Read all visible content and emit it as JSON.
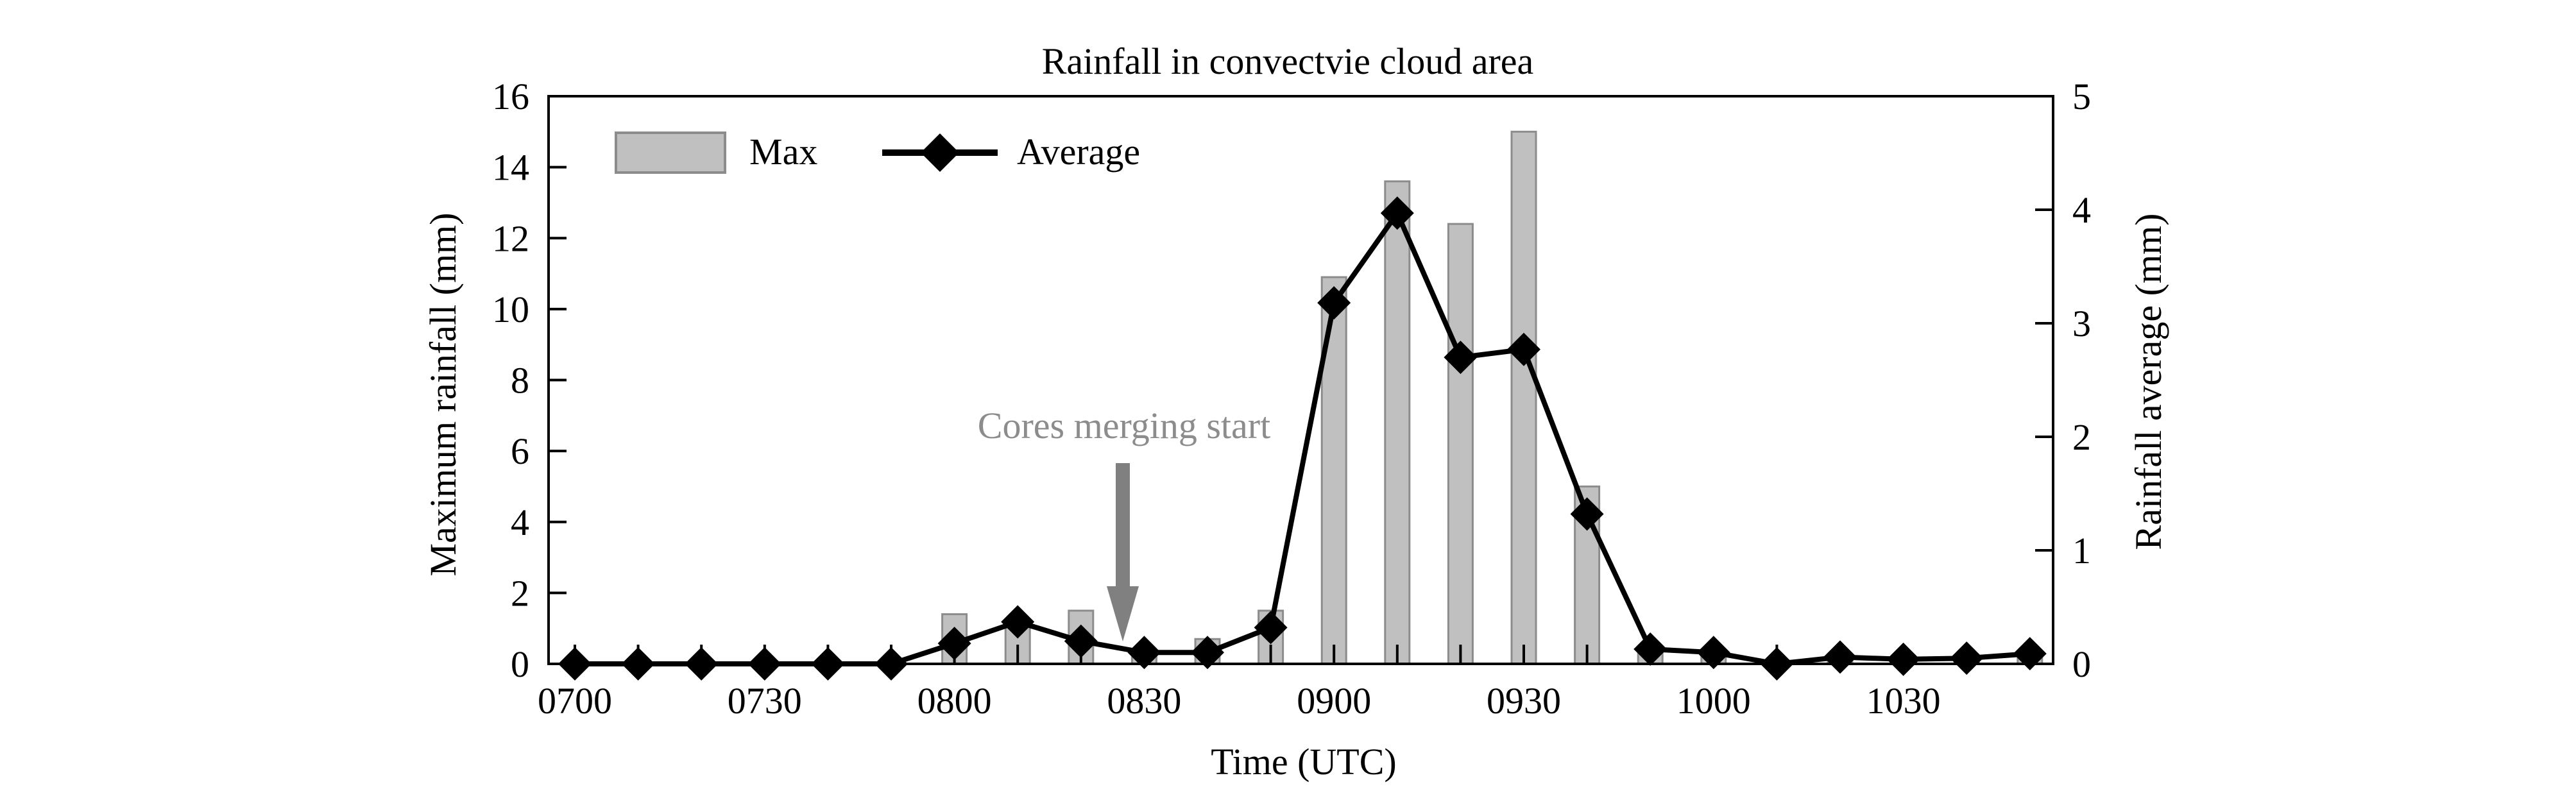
{
  "chart_data": {
    "type": "bar+line",
    "title": "Rainfall in convectvie cloud area",
    "xlabel": "Time (UTC)",
    "ylabel_left": "Maximum rainfall (mm)",
    "ylabel_right": "Rainfall average (mm)",
    "x_ticklabels": [
      "0700",
      "0730",
      "0800",
      "0830",
      "0900",
      "0930",
      "1000",
      "1030"
    ],
    "y_left_ticklabels": [
      "0",
      "2",
      "4",
      "6",
      "8",
      "10",
      "12",
      "14",
      "16"
    ],
    "y_right_ticklabels": [
      "0",
      "1",
      "2",
      "3",
      "4",
      "5"
    ],
    "ylim_left": [
      0,
      16
    ],
    "ylim_right": [
      0,
      5
    ],
    "grid": false,
    "legend_position": "top-left",
    "times": [
      "0700",
      "0710",
      "0720",
      "0730",
      "0740",
      "0750",
      "0800",
      "0810",
      "0820",
      "0830",
      "0840",
      "0850",
      "0900",
      "0910",
      "0920",
      "0930",
      "0940",
      "0950",
      "1000",
      "1010",
      "1020",
      "1030",
      "1040",
      "1050"
    ],
    "series": [
      {
        "name": "Max",
        "kind": "bar",
        "axis": "left",
        "color": "#c0c0c0",
        "values": [
          0,
          0,
          0,
          0,
          0,
          0,
          1.4,
          1.2,
          1.5,
          0.3,
          0.7,
          1.5,
          10.9,
          13.6,
          12.4,
          15.0,
          5.0,
          0.3,
          0.4,
          0,
          0.1,
          0.1,
          0.1,
          0.2
        ]
      },
      {
        "name": "Average",
        "kind": "line",
        "axis": "right",
        "color": "#000000",
        "values": [
          0,
          0,
          0,
          0,
          0,
          0,
          0.18,
          0.37,
          0.2,
          0.1,
          0.1,
          0.32,
          3.18,
          3.97,
          2.7,
          2.77,
          1.32,
          0.13,
          0.1,
          0,
          0.06,
          0.04,
          0.05,
          0.09
        ]
      }
    ],
    "annotation": {
      "text": "Cores merging start",
      "at_time": "0830",
      "color": "#808080"
    }
  }
}
